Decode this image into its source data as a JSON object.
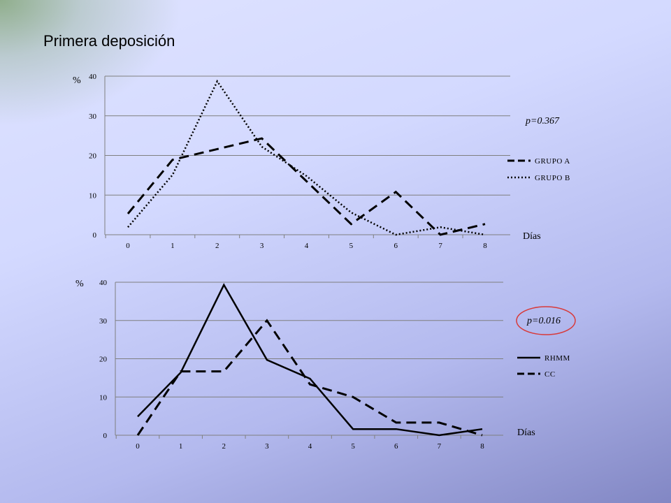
{
  "title": "Primera deposición",
  "highlight_color": "#d83a3a",
  "chart_data": [
    {
      "type": "line",
      "x": [
        0,
        1,
        2,
        3,
        4,
        5,
        6,
        7,
        8
      ],
      "xlabel": "Días",
      "ylabel": "%",
      "ylim": [
        0,
        40
      ],
      "yticks": [
        0,
        10,
        20,
        30,
        40
      ],
      "grid": true,
      "legend": "right",
      "annotation": "p=0.367",
      "series": [
        {
          "name": "GRUPO A",
          "style": "dashed",
          "values": [
            5.3,
            18.9,
            21.6,
            24.3,
            13.5,
            2.7,
            10.8,
            0,
            2.7
          ]
        },
        {
          "name": "GRUPO B",
          "style": "dotted",
          "values": [
            1.9,
            15.1,
            38.7,
            22.2,
            14.8,
            5.6,
            0,
            1.9,
            0
          ]
        }
      ]
    },
    {
      "type": "line",
      "x": [
        0,
        1,
        2,
        3,
        4,
        5,
        6,
        7,
        8
      ],
      "xlabel": "Días",
      "ylabel": "%",
      "ylim": [
        0,
        40
      ],
      "yticks": [
        0,
        10,
        20,
        30,
        40
      ],
      "grid": true,
      "legend": "right",
      "annotation": "p=0.016",
      "annotation_circled": true,
      "series": [
        {
          "name": "RHMM",
          "style": "solid",
          "values": [
            4.9,
            16.4,
            39.3,
            19.7,
            14.8,
            1.6,
            1.6,
            0,
            1.6
          ]
        },
        {
          "name": "CC",
          "style": "dashed",
          "values": [
            0,
            16.7,
            16.7,
            30.0,
            13.3,
            10.0,
            3.3,
            3.3,
            0
          ]
        }
      ]
    }
  ]
}
